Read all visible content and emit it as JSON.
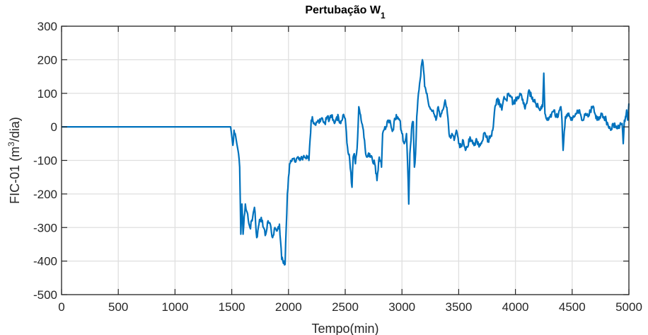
{
  "chart_data": {
    "type": "line",
    "title": "Pertubação W",
    "title_subscript": "1",
    "xlabel": "Tempo(min)",
    "ylabel_prefix": "FIC-01 (m",
    "ylabel_superscript": "3",
    "ylabel_suffix": "/dia)",
    "xlim": [
      0,
      5000
    ],
    "ylim": [
      -500,
      300
    ],
    "xticks": [
      0,
      500,
      1000,
      1500,
      2000,
      2500,
      3000,
      3500,
      4000,
      4500,
      5000
    ],
    "yticks": [
      -500,
      -400,
      -300,
      -200,
      -100,
      0,
      100,
      200,
      300
    ],
    "grid": true,
    "line_color": "#0072BD",
    "series": [
      {
        "x": [
          0,
          1490,
          1510,
          1520,
          1530,
          1540,
          1550,
          1560,
          1570,
          1580,
          1590,
          1600,
          1620,
          1640,
          1660,
          1680,
          1700,
          1720,
          1740,
          1760,
          1780,
          1800,
          1820,
          1840,
          1860,
          1880,
          1900,
          1920,
          1940,
          1960,
          1970,
          1980,
          1990,
          2000,
          2010,
          2020,
          2040,
          2060,
          2080,
          2100,
          2120,
          2140,
          2160,
          2180,
          2200,
          2210,
          2220,
          2240,
          2260,
          2280,
          2300,
          2320,
          2340,
          2360,
          2380,
          2400,
          2420,
          2440,
          2460,
          2480,
          2500,
          2520,
          2540,
          2560,
          2570,
          2580,
          2590,
          2600,
          2610,
          2620,
          2640,
          2660,
          2670,
          2680,
          2700,
          2720,
          2740,
          2760,
          2780,
          2790,
          2800,
          2810,
          2820,
          2830,
          2840,
          2860,
          2880,
          2900,
          2920,
          2940,
          2960,
          2980,
          3000,
          3020,
          3040,
          3050,
          3060,
          3070,
          3080,
          3090,
          3100,
          3110,
          3120,
          3130,
          3140,
          3150,
          3160,
          3170,
          3180,
          3190,
          3200,
          3220,
          3240,
          3260,
          3280,
          3300,
          3320,
          3340,
          3360,
          3380,
          3400,
          3420,
          3440,
          3460,
          3480,
          3500,
          3520,
          3540,
          3560,
          3580,
          3600,
          3620,
          3640,
          3660,
          3680,
          3700,
          3720,
          3740,
          3760,
          3780,
          3800,
          3820,
          3840,
          3860,
          3880,
          3900,
          3920,
          3940,
          3960,
          3980,
          4000,
          4020,
          4040,
          4060,
          4080,
          4100,
          4120,
          4140,
          4160,
          4180,
          4200,
          4220,
          4240,
          4250,
          4260,
          4280,
          4300,
          4320,
          4340,
          4360,
          4380,
          4400,
          4410,
          4420,
          4440,
          4460,
          4480,
          4500,
          4520,
          4540,
          4560,
          4580,
          4600,
          4620,
          4640,
          4660,
          4680,
          4700,
          4720,
          4740,
          4760,
          4780,
          4800,
          4820,
          4840,
          4860,
          4880,
          4900,
          4920,
          4940,
          4950,
          4960,
          4970,
          4980,
          4990,
          5000
        ],
        "y": [
          0,
          0,
          -55,
          -10,
          -20,
          -40,
          -60,
          -80,
          -120,
          -320,
          -230,
          -320,
          -230,
          -260,
          -300,
          -280,
          -240,
          -330,
          -290,
          -270,
          -300,
          -320,
          -280,
          -290,
          -330,
          -300,
          -310,
          -290,
          -395,
          -400,
          -410,
          -300,
          -200,
          -150,
          -110,
          -100,
          -95,
          -105,
          -90,
          -100,
          -95,
          -90,
          -85,
          -100,
          20,
          30,
          10,
          5,
          20,
          15,
          25,
          10,
          30,
          20,
          35,
          15,
          25,
          30,
          10,
          35,
          25,
          -60,
          -100,
          -180,
          -90,
          -80,
          -110,
          -80,
          -30,
          60,
          20,
          -10,
          -40,
          -80,
          -85,
          -90,
          -100,
          -110,
          -160,
          -130,
          -90,
          -100,
          -120,
          -20,
          -10,
          0,
          20,
          10,
          -10,
          25,
          30,
          20,
          -20,
          -50,
          -20,
          -110,
          -230,
          -80,
          -40,
          10,
          15,
          -120,
          -80,
          30,
          80,
          110,
          140,
          180,
          200,
          170,
          120,
          100,
          60,
          50,
          40,
          20,
          60,
          30,
          50,
          80,
          40,
          -30,
          -20,
          -40,
          -10,
          -50,
          -60,
          -40,
          -70,
          -60,
          -30,
          -40,
          -50,
          -40,
          -60,
          -50,
          -20,
          -30,
          -40,
          -30,
          -10,
          60,
          80,
          70,
          50,
          90,
          80,
          100,
          90,
          70,
          80,
          90,
          100,
          80,
          60,
          70,
          110,
          90,
          80,
          70,
          60,
          50,
          60,
          160,
          40,
          20,
          30,
          40,
          50,
          30,
          40,
          60,
          20,
          -70,
          30,
          40,
          30,
          20,
          30,
          40,
          50,
          30,
          20,
          40,
          30,
          45,
          60,
          40,
          20,
          30,
          40,
          30,
          20,
          0,
          -10,
          10,
          0,
          -5,
          5,
          10,
          -50,
          20,
          30,
          50,
          20,
          70
        ]
      }
    ]
  }
}
